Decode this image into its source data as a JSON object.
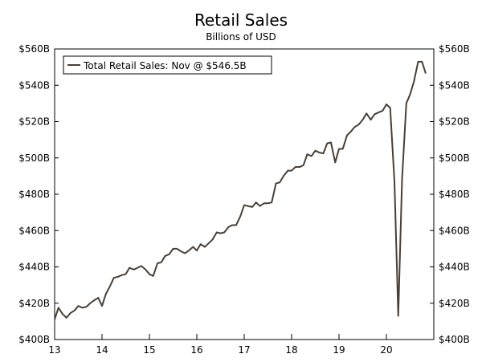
{
  "chart_data": {
    "type": "line",
    "title": "Retail Sales",
    "subtitle": "Billions of USD",
    "xlabel": "",
    "ylabel": "",
    "x_ticks": [
      "13",
      "14",
      "15",
      "16",
      "17",
      "18",
      "19",
      "20"
    ],
    "xlim": [
      2013,
      2021.0
    ],
    "y_ticks": [
      "$400B",
      "$420B",
      "$440B",
      "$460B",
      "$480B",
      "$500B",
      "$520B",
      "$540B",
      "$560B"
    ],
    "ylim": [
      400,
      560
    ],
    "grid": false,
    "legend_position": "top-left",
    "series": [
      {
        "name": "Total Retail Sales: Nov @ $546.5B",
        "color": "#4a3f36",
        "x": [
          2013.0,
          2013.08,
          2013.17,
          2013.25,
          2013.33,
          2013.42,
          2013.5,
          2013.58,
          2013.67,
          2013.75,
          2013.83,
          2013.92,
          2014.0,
          2014.08,
          2014.17,
          2014.25,
          2014.33,
          2014.42,
          2014.5,
          2014.58,
          2014.67,
          2014.75,
          2014.83,
          2014.92,
          2015.0,
          2015.08,
          2015.17,
          2015.25,
          2015.33,
          2015.42,
          2015.5,
          2015.58,
          2015.67,
          2015.75,
          2015.83,
          2015.92,
          2016.0,
          2016.08,
          2016.17,
          2016.25,
          2016.33,
          2016.42,
          2016.5,
          2016.58,
          2016.67,
          2016.75,
          2016.83,
          2016.92,
          2017.0,
          2017.08,
          2017.17,
          2017.25,
          2017.33,
          2017.42,
          2017.5,
          2017.58,
          2017.67,
          2017.75,
          2017.83,
          2017.92,
          2018.0,
          2018.08,
          2018.17,
          2018.25,
          2018.33,
          2018.42,
          2018.5,
          2018.58,
          2018.67,
          2018.75,
          2018.83,
          2018.92,
          2019.0,
          2019.08,
          2019.17,
          2019.25,
          2019.33,
          2019.42,
          2019.5,
          2019.58,
          2019.67,
          2019.75,
          2019.83,
          2019.92,
          2020.0,
          2020.08,
          2020.17,
          2020.25,
          2020.33,
          2020.42,
          2020.5,
          2020.58,
          2020.67,
          2020.75,
          2020.83
        ],
        "values": [
          411.0,
          417.5,
          414.0,
          412.0,
          414.5,
          416.0,
          418.5,
          417.5,
          418.0,
          420.0,
          421.5,
          423.0,
          418.5,
          425.0,
          429.5,
          434.0,
          434.5,
          435.5,
          436.0,
          439.5,
          438.5,
          439.5,
          440.5,
          438.5,
          436.0,
          435.0,
          442.0,
          442.5,
          446.0,
          447.0,
          450.0,
          450.0,
          448.5,
          447.5,
          449.0,
          451.0,
          449.0,
          452.5,
          451.0,
          453.0,
          455.0,
          459.0,
          458.5,
          459.0,
          462.0,
          463.0,
          463.0,
          468.0,
          474.0,
          473.5,
          473.0,
          475.5,
          473.5,
          475.0,
          475.0,
          475.5,
          486.0,
          486.5,
          490.0,
          493.0,
          493.0,
          495.0,
          495.0,
          496.0,
          502.0,
          501.0,
          504.0,
          503.0,
          502.5,
          508.0,
          508.5,
          497.5,
          505.0,
          505.0,
          512.5,
          514.5,
          517.0,
          518.5,
          521.0,
          524.5,
          521.0,
          524.0,
          525.0,
          526.0,
          529.5,
          527.5,
          487.0,
          413.0,
          488.0,
          530.0,
          535.0,
          542.0,
          553.0,
          553.0,
          546.5
        ]
      }
    ]
  }
}
